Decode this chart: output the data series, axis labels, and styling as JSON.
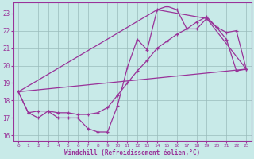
{
  "xlabel": "Windchill (Refroidissement éolien,°C)",
  "background_color": "#c8eae8",
  "grid_color": "#99bbbb",
  "line_color": "#993399",
  "xlim": [
    -0.5,
    23.5
  ],
  "ylim": [
    15.7,
    23.6
  ],
  "xticks": [
    0,
    1,
    2,
    3,
    4,
    5,
    6,
    7,
    8,
    9,
    10,
    11,
    12,
    13,
    14,
    15,
    16,
    17,
    18,
    19,
    20,
    21,
    22,
    23
  ],
  "yticks": [
    16,
    17,
    18,
    19,
    20,
    21,
    22,
    23
  ],
  "series1_x": [
    0,
    1,
    2,
    3,
    4,
    5,
    6,
    7,
    8,
    9,
    10,
    11,
    12,
    13,
    14,
    15,
    16,
    17,
    18,
    19,
    20,
    21,
    22,
    23
  ],
  "series1_y": [
    18.5,
    17.3,
    17.0,
    17.4,
    17.0,
    17.0,
    17.0,
    16.4,
    16.2,
    16.2,
    17.7,
    19.9,
    21.5,
    20.9,
    23.2,
    23.4,
    23.2,
    22.1,
    22.1,
    22.7,
    22.2,
    21.5,
    19.7,
    19.8
  ],
  "series2_x": [
    0,
    1,
    2,
    3,
    4,
    5,
    6,
    7,
    8,
    9,
    10,
    11,
    12,
    13,
    14,
    15,
    16,
    17,
    18,
    19,
    20,
    21,
    22,
    23
  ],
  "series2_y": [
    18.5,
    17.3,
    17.4,
    17.4,
    17.3,
    17.3,
    17.2,
    17.2,
    17.3,
    17.6,
    18.3,
    19.0,
    19.7,
    20.3,
    21.0,
    21.4,
    21.8,
    22.1,
    22.5,
    22.8,
    22.2,
    21.9,
    22.0,
    19.8
  ],
  "series3_x": [
    0,
    14,
    19,
    23
  ],
  "series3_y": [
    18.5,
    23.2,
    22.7,
    19.8
  ],
  "series4_x": [
    0,
    23
  ],
  "series4_y": [
    18.5,
    19.8
  ]
}
